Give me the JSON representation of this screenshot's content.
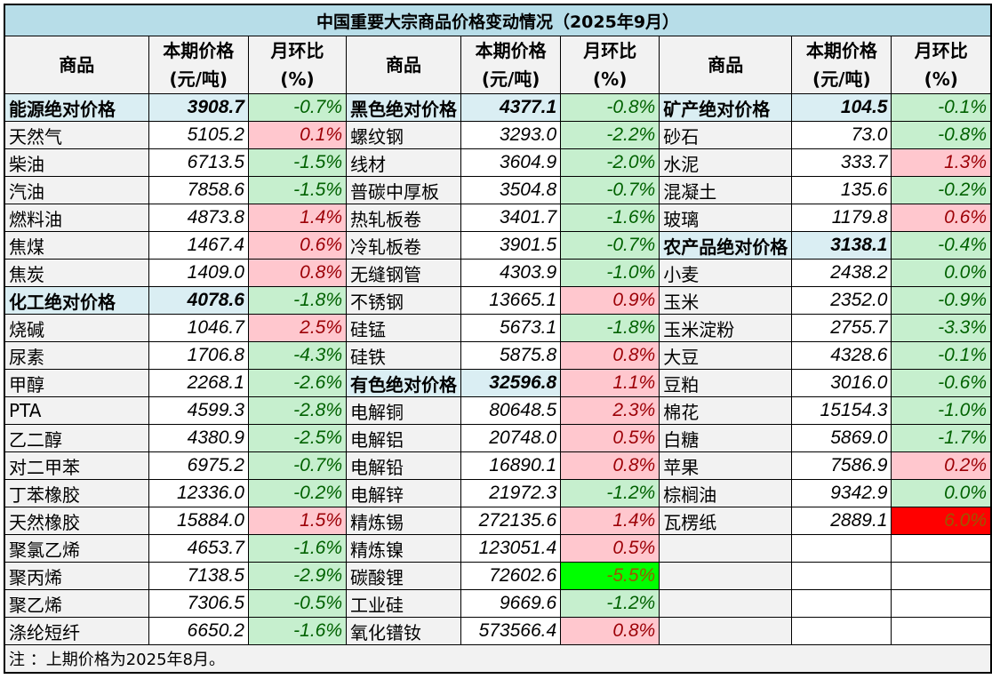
{
  "title": "中国重要大宗商品价格变动情况（2025年9月）",
  "headers": {
    "name": "商品",
    "price_l1": "本期价格",
    "price_l2": "(元/吨)",
    "pct_l1": "月环比",
    "pct_l2": "(%)"
  },
  "colors": {
    "up_bg": "#ffc7ce",
    "up_text": "#9c0006",
    "down_bg": "#c6efce",
    "down_text": "#006100",
    "group_bg": "#daeef3",
    "title_bg": "#b7dde8",
    "strong_down_bg": "#00ff00",
    "strong_up_bg": "#ff0000"
  },
  "columns": [
    [
      {
        "name": "能源绝对价格",
        "price": "3908.7",
        "pct": "-0.7%",
        "tone": "g",
        "group": true
      },
      {
        "name": "天然气",
        "price": "5105.2",
        "pct": "0.1%",
        "tone": "r"
      },
      {
        "name": "柴油",
        "price": "6713.5",
        "pct": "-1.5%",
        "tone": "g"
      },
      {
        "name": "汽油",
        "price": "7858.6",
        "pct": "-1.5%",
        "tone": "g"
      },
      {
        "name": "燃料油",
        "price": "4873.8",
        "pct": "1.4%",
        "tone": "r"
      },
      {
        "name": "焦煤",
        "price": "1467.4",
        "pct": "0.6%",
        "tone": "r"
      },
      {
        "name": "焦炭",
        "price": "1409.0",
        "pct": "0.8%",
        "tone": "r"
      },
      {
        "name": "化工绝对价格",
        "price": "4078.6",
        "pct": "-1.8%",
        "tone": "g",
        "group": true
      },
      {
        "name": "烧碱",
        "price": "1046.7",
        "pct": "2.5%",
        "tone": "r"
      },
      {
        "name": "尿素",
        "price": "1706.8",
        "pct": "-4.3%",
        "tone": "g"
      },
      {
        "name": "甲醇",
        "price": "2268.1",
        "pct": "-2.6%",
        "tone": "g"
      },
      {
        "name": "PTA",
        "price": "4599.3",
        "pct": "-2.8%",
        "tone": "g"
      },
      {
        "name": "乙二醇",
        "price": "4380.9",
        "pct": "-2.5%",
        "tone": "g"
      },
      {
        "name": "对二甲苯",
        "price": "6975.2",
        "pct": "-0.7%",
        "tone": "g"
      },
      {
        "name": "丁苯橡胶",
        "price": "12336.0",
        "pct": "-0.2%",
        "tone": "g"
      },
      {
        "name": "天然橡胶",
        "price": "15884.0",
        "pct": "1.5%",
        "tone": "r"
      },
      {
        "name": "聚氯乙烯",
        "price": "4653.7",
        "pct": "-1.6%",
        "tone": "g"
      },
      {
        "name": "聚丙烯",
        "price": "7138.5",
        "pct": "-2.9%",
        "tone": "g"
      },
      {
        "name": "聚乙烯",
        "price": "7306.5",
        "pct": "-0.5%",
        "tone": "g"
      },
      {
        "name": "涤纶短纤",
        "price": "6650.2",
        "pct": "-1.6%",
        "tone": "g"
      }
    ],
    [
      {
        "name": "黑色绝对价格",
        "price": "4377.1",
        "pct": "-0.8%",
        "tone": "g",
        "group": true
      },
      {
        "name": "螺纹钢",
        "price": "3293.0",
        "pct": "-2.2%",
        "tone": "g"
      },
      {
        "name": "线材",
        "price": "3604.9",
        "pct": "-2.0%",
        "tone": "g"
      },
      {
        "name": "普碳中厚板",
        "price": "3504.8",
        "pct": "-0.7%",
        "tone": "g"
      },
      {
        "name": "热轧板卷",
        "price": "3401.7",
        "pct": "-1.6%",
        "tone": "g"
      },
      {
        "name": "冷轧板卷",
        "price": "3901.5",
        "pct": "-0.7%",
        "tone": "g"
      },
      {
        "name": "无缝钢管",
        "price": "4303.9",
        "pct": "-1.0%",
        "tone": "g"
      },
      {
        "name": "不锈钢",
        "price": "13665.1",
        "pct": "0.9%",
        "tone": "r"
      },
      {
        "name": "硅锰",
        "price": "5673.1",
        "pct": "-1.8%",
        "tone": "g"
      },
      {
        "name": "硅铁",
        "price": "5875.8",
        "pct": "0.8%",
        "tone": "r"
      },
      {
        "name": "有色绝对价格",
        "price": "32596.8",
        "pct": "1.1%",
        "tone": "r",
        "group": true
      },
      {
        "name": "电解铜",
        "price": "80648.5",
        "pct": "2.3%",
        "tone": "r"
      },
      {
        "name": "电解铝",
        "price": "20748.0",
        "pct": "0.5%",
        "tone": "r"
      },
      {
        "name": "电解铅",
        "price": "16890.1",
        "pct": "0.8%",
        "tone": "r"
      },
      {
        "name": "电解锌",
        "price": "21972.3",
        "pct": "-1.2%",
        "tone": "g"
      },
      {
        "name": "精炼锡",
        "price": "272135.6",
        "pct": "1.4%",
        "tone": "r"
      },
      {
        "name": "精炼镍",
        "price": "123051.4",
        "pct": "0.5%",
        "tone": "r"
      },
      {
        "name": "碳酸锂",
        "price": "72602.6",
        "pct": "-5.5%",
        "tone": "sg"
      },
      {
        "name": "工业硅",
        "price": "9669.6",
        "pct": "-1.2%",
        "tone": "g"
      },
      {
        "name": "氧化镨钕",
        "price": "573566.4",
        "pct": "0.8%",
        "tone": "r"
      }
    ],
    [
      {
        "name": "矿产绝对价格",
        "price": "104.5",
        "pct": "-0.1%",
        "tone": "g",
        "group": true
      },
      {
        "name": "砂石",
        "price": "73.0",
        "pct": "-0.8%",
        "tone": "g"
      },
      {
        "name": "水泥",
        "price": "333.7",
        "pct": "1.3%",
        "tone": "r"
      },
      {
        "name": "混凝土",
        "price": "135.6",
        "pct": "-0.2%",
        "tone": "g"
      },
      {
        "name": "玻璃",
        "price": "1179.8",
        "pct": "0.6%",
        "tone": "r"
      },
      {
        "name": "农产品绝对价格",
        "price": "3138.1",
        "pct": "-0.4%",
        "tone": "g",
        "group": true
      },
      {
        "name": "小麦",
        "price": "2438.2",
        "pct": "0.0%",
        "tone": "g"
      },
      {
        "name": "玉米",
        "price": "2352.0",
        "pct": "-0.9%",
        "tone": "g"
      },
      {
        "name": "玉米淀粉",
        "price": "2755.7",
        "pct": "-3.3%",
        "tone": "g"
      },
      {
        "name": "大豆",
        "price": "4328.6",
        "pct": "-0.1%",
        "tone": "g"
      },
      {
        "name": "豆粕",
        "price": "3016.0",
        "pct": "-0.6%",
        "tone": "g"
      },
      {
        "name": "棉花",
        "price": "15154.3",
        "pct": "-1.0%",
        "tone": "g"
      },
      {
        "name": "白糖",
        "price": "5869.0",
        "pct": "-1.7%",
        "tone": "g"
      },
      {
        "name": "苹果",
        "price": "7586.9",
        "pct": "0.2%",
        "tone": "r"
      },
      {
        "name": "棕榈油",
        "price": "9342.9",
        "pct": "0.0%",
        "tone": "g"
      },
      {
        "name": "瓦楞纸",
        "price": "2889.1",
        "pct": "6.0%",
        "tone": "sr"
      }
    ]
  ],
  "note": "注 ：上期价格为2025年8月。"
}
